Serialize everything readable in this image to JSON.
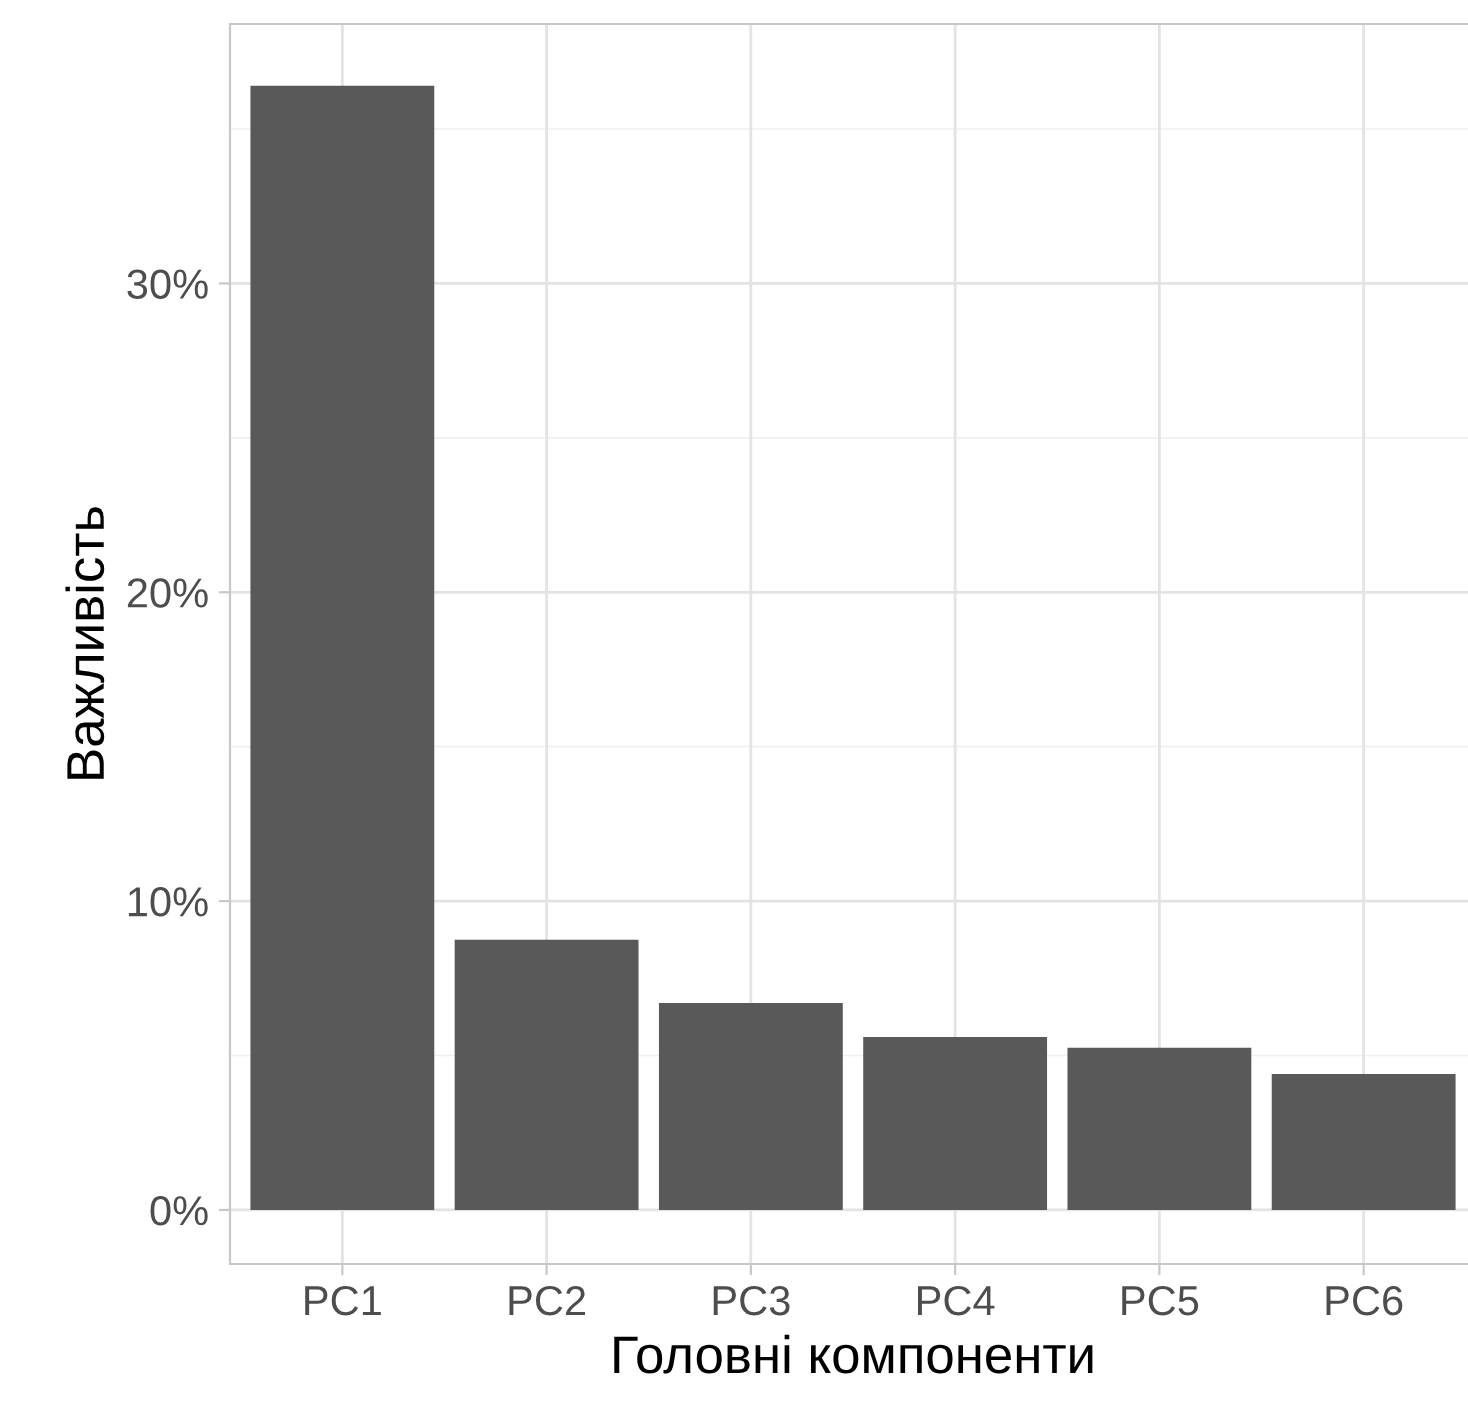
{
  "chart_data": {
    "type": "bar",
    "xlabel": "Головні компоненти",
    "ylabel": "Важливість",
    "categories": [
      "PC1",
      "PC2",
      "PC3",
      "PC4",
      "PC5",
      "PC6"
    ],
    "values": [
      36.4,
      8.75,
      6.7,
      5.6,
      5.25,
      4.4
    ],
    "color": "#595959",
    "ylim": [
      -1.75,
      38.4
    ],
    "yticks": [
      {
        "value": 0,
        "label": "0%"
      },
      {
        "value": 10,
        "label": "10%"
      },
      {
        "value": 20,
        "label": "20%"
      },
      {
        "value": 30,
        "label": "30%"
      }
    ],
    "grid": true
  }
}
